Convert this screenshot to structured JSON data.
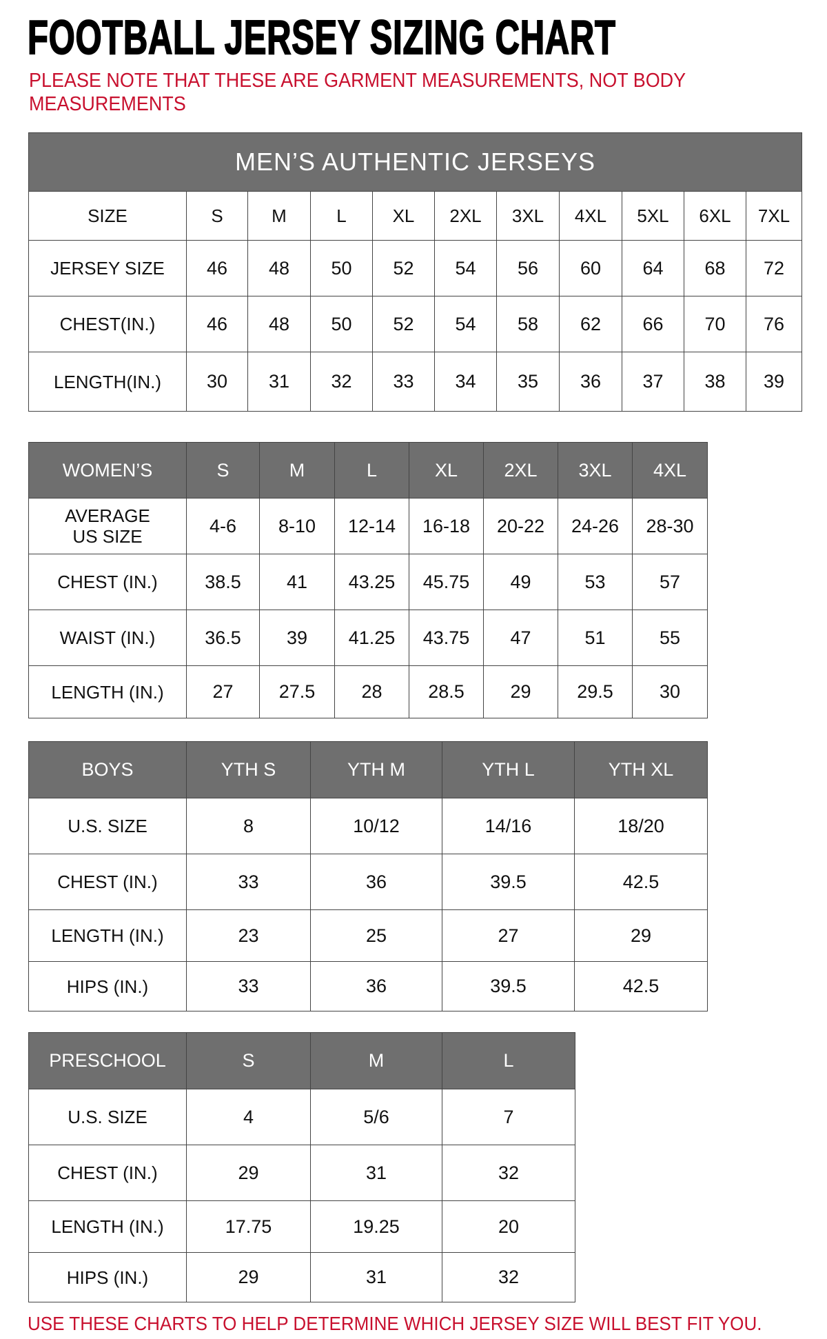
{
  "title": "FOOTBALL JERSEY SIZING CHART",
  "note": "PLEASE NOTE THAT THESE ARE GARMENT MEASUREMENTS, NOT BODY MEASUREMENTS",
  "footer": "USE THESE CHARTS TO HELP DETERMINE WHICH JERSEY SIZE WILL BEST FIT YOU.",
  "colors": {
    "header_bg": "#6f6f6f",
    "accent_red": "#c8102e"
  },
  "tables": [
    {
      "id": "men",
      "caption": "MEN’S AUTHENTIC JERSEYS",
      "header": [
        "SIZE",
        "S",
        "M",
        "L",
        "XL",
        "2XL",
        "3XL",
        "4XL",
        "5XL",
        "6XL",
        "7XL"
      ],
      "header_is_row": true,
      "rows": [
        [
          "JERSEY SIZE",
          "46",
          "48",
          "50",
          "52",
          "54",
          "56",
          "60",
          "64",
          "68",
          "72"
        ],
        [
          "CHEST(IN.)",
          "46",
          "48",
          "50",
          "52",
          "54",
          "58",
          "62",
          "66",
          "70",
          "76"
        ],
        [
          "LENGTH(IN.)",
          "30",
          "31",
          "32",
          "33",
          "34",
          "35",
          "36",
          "37",
          "38",
          "39"
        ]
      ]
    },
    {
      "id": "women",
      "header": [
        "WOMEN’S",
        "S",
        "M",
        "L",
        "XL",
        "2XL",
        "3XL",
        "4XL"
      ],
      "rows": [
        [
          "AVERAGE US SIZE",
          "4-6",
          "8-10",
          "12-14",
          "16-18",
          "20-22",
          "24-26",
          "28-30"
        ],
        [
          "CHEST (IN.)",
          "38.5",
          "41",
          "43.25",
          "45.75",
          "49",
          "53",
          "57"
        ],
        [
          "WAIST (IN.)",
          "36.5",
          "39",
          "41.25",
          "43.75",
          "47",
          "51",
          "55"
        ],
        [
          "LENGTH (IN.)",
          "27",
          "27.5",
          "28",
          "28.5",
          "29",
          "29.5",
          "30"
        ]
      ]
    },
    {
      "id": "boys",
      "header": [
        "BOYS",
        "YTH S",
        "YTH M",
        "YTH L",
        "YTH XL"
      ],
      "rows": [
        [
          "U.S. SIZE",
          "8",
          "10/12",
          "14/16",
          "18/20"
        ],
        [
          "CHEST (IN.)",
          "33",
          "36",
          "39.5",
          "42.5"
        ],
        [
          "LENGTH (IN.)",
          "23",
          "25",
          "27",
          "29"
        ],
        [
          "HIPS (IN.)",
          "33",
          "36",
          "39.5",
          "42.5"
        ]
      ]
    },
    {
      "id": "pre",
      "header": [
        "PRESCHOOL",
        "S",
        "M",
        "L"
      ],
      "rows": [
        [
          "U.S. SIZE",
          "4",
          "5/6",
          "7"
        ],
        [
          "CHEST (IN.)",
          "29",
          "31",
          "32"
        ],
        [
          "LENGTH (IN.)",
          "17.75",
          "19.25",
          "20"
        ],
        [
          "HIPS (IN.)",
          "29",
          "31",
          "32"
        ]
      ]
    }
  ]
}
